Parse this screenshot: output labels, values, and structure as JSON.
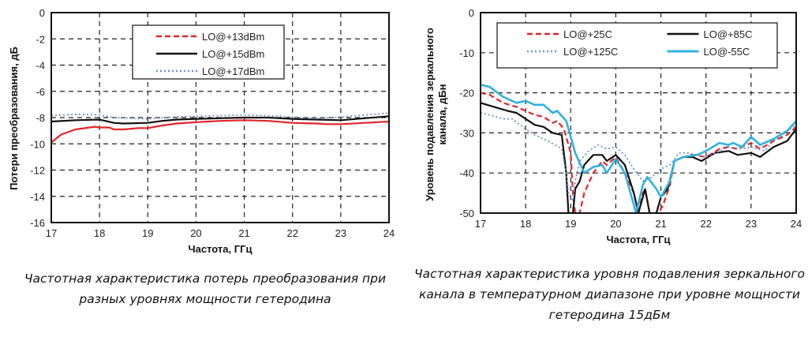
{
  "chart_data": [
    {
      "type": "line",
      "xlabel": "Частота, ГГц",
      "ylabel": "Потери преобразования, дБ",
      "xlim": [
        17,
        24
      ],
      "ylim": [
        -16,
        0
      ],
      "xticks": [
        17,
        18,
        19,
        20,
        21,
        22,
        23,
        24
      ],
      "yticks": [
        0,
        -2,
        -4,
        -6,
        -8,
        -10,
        -12,
        -14,
        -16
      ],
      "grid": true,
      "legend_placement": "top-center",
      "caption": "Частотная характеристика потерь преобразования при разных уровнях мощности гетеродина",
      "series": [
        {
          "name": "LO@+13dBm",
          "color": "#e0262b",
          "style": "dashed-legend",
          "x": [
            17,
            17.2,
            17.5,
            17.9,
            18,
            18.2,
            18.3,
            18.5,
            18.8,
            19,
            19.3,
            19.6,
            20,
            20.5,
            21,
            21.5,
            22,
            22.5,
            22.7,
            23,
            23.5,
            24
          ],
          "y": [
            -9.9,
            -9.3,
            -8.9,
            -8.7,
            -8.75,
            -8.75,
            -8.9,
            -8.9,
            -8.8,
            -8.8,
            -8.6,
            -8.45,
            -8.35,
            -8.25,
            -8.2,
            -8.25,
            -8.4,
            -8.45,
            -8.5,
            -8.5,
            -8.4,
            -8.3
          ]
        },
        {
          "name": "LO@+15dBm",
          "color": "#111111",
          "style": "solid",
          "x": [
            17,
            17.5,
            18,
            18.3,
            18.5,
            19,
            19.3,
            19.6,
            20,
            20.5,
            21,
            21.5,
            22,
            22.5,
            23,
            23.5,
            24
          ],
          "y": [
            -8.3,
            -8.2,
            -8.15,
            -8.4,
            -8.45,
            -8.4,
            -8.25,
            -8.15,
            -8.1,
            -8.05,
            -8.0,
            -8.0,
            -8.1,
            -8.15,
            -8.2,
            -8.05,
            -7.9
          ]
        },
        {
          "name": "LO@+17dBm",
          "color": "#6f8fc9",
          "style": "dotted",
          "x": [
            17,
            17.5,
            18,
            18.3,
            19,
            19.5,
            20,
            21,
            21.5,
            22,
            22.5,
            23,
            23.5,
            24
          ],
          "y": [
            -7.85,
            -7.75,
            -7.8,
            -8.0,
            -8.1,
            -7.95,
            -7.9,
            -7.8,
            -7.85,
            -7.95,
            -8.05,
            -7.95,
            -7.8,
            -7.65
          ]
        }
      ]
    },
    {
      "type": "line",
      "xlabel": "Частота, ГГц",
      "ylabel": "Уровень подавления зеркального канала, дБн",
      "xlim": [
        17,
        24
      ],
      "ylim": [
        -50,
        0
      ],
      "xticks": [
        17,
        18,
        19,
        20,
        21,
        22,
        23,
        24
      ],
      "yticks": [
        0,
        -10,
        -20,
        -30,
        -40,
        -50
      ],
      "grid": true,
      "legend_placement": "top",
      "caption": "Частотная характеристика уровня подавления зеркального канала в температурном диапазоне при уровне мощности гетеродина 15дБм",
      "series": [
        {
          "name": "LO@+25C",
          "color": "#e0262b",
          "style": "dashed",
          "x": [
            17,
            17.2,
            17.5,
            17.8,
            18,
            18.2,
            18.4,
            18.6,
            18.7,
            18.85,
            19,
            19.05,
            19.1,
            19.2,
            19.3,
            19.5,
            19.7,
            19.8,
            20,
            20.2,
            20.4,
            20.5,
            20.6,
            20.65,
            20.75,
            20.95,
            21.05,
            21.2,
            21.3,
            21.5,
            21.7,
            22,
            22.3,
            22.5,
            22.7,
            23,
            23.2,
            23.5,
            23.8,
            24
          ],
          "y": [
            -20,
            -20.5,
            -22.5,
            -23.5,
            -24.5,
            -25.5,
            -26,
            -27.5,
            -27,
            -29,
            -35,
            -45,
            -50,
            -50,
            -45,
            -40,
            -37,
            -38,
            -36,
            -40,
            -45,
            -50,
            -45,
            -44,
            -50,
            -50,
            -48,
            -43,
            -37,
            -36,
            -35.5,
            -36,
            -34,
            -33.5,
            -34,
            -32.5,
            -34,
            -32,
            -30.5,
            -28.5
          ]
        },
        {
          "name": "LO@+85C",
          "color": "#111111",
          "style": "solid",
          "x": [
            17,
            17.3,
            17.6,
            17.8,
            18,
            18.2,
            18.4,
            18.6,
            18.8,
            18.9,
            18.95,
            19.05,
            19.1,
            19.2,
            19.3,
            19.5,
            19.7,
            19.8,
            20,
            20.2,
            20.4,
            20.5,
            20.6,
            20.65,
            20.75,
            20.9,
            21,
            21.15,
            21.3,
            21.5,
            21.7,
            21.9,
            22.2,
            22.5,
            22.7,
            23,
            23.2,
            23.5,
            23.8,
            24
          ],
          "y": [
            -22.5,
            -23.5,
            -24.5,
            -25,
            -26.5,
            -28,
            -28.5,
            -30,
            -30.5,
            -40,
            -50,
            -50,
            -44,
            -42,
            -38,
            -35.5,
            -35.5,
            -37,
            -35.5,
            -38,
            -45,
            -50,
            -46,
            -44,
            -50,
            -50,
            -46,
            -44,
            -37,
            -36,
            -36,
            -37,
            -35,
            -34.5,
            -35.5,
            -35,
            -36,
            -33.5,
            -32,
            -29
          ]
        },
        {
          "name": "LO@+125C",
          "color": "#6f8fc9",
          "style": "dotted",
          "x": [
            17,
            17.2,
            17.5,
            17.7,
            18,
            18.2,
            18.5,
            18.8,
            18.9,
            18.95,
            19.05,
            19.1,
            19.2,
            19.4,
            19.6,
            19.8,
            20,
            20.2,
            20.4,
            20.6,
            20.8,
            21,
            21.2,
            21.4,
            21.6,
            22,
            22.3,
            22.5,
            22.8,
            23,
            23.3,
            23.5,
            24
          ],
          "y": [
            -25,
            -25.5,
            -26.5,
            -26.5,
            -29,
            -30.5,
            -32,
            -34,
            -40,
            -45,
            -47,
            -42,
            -37,
            -34.5,
            -33,
            -34,
            -33.5,
            -35.5,
            -39,
            -42,
            -41,
            -39,
            -38,
            -35,
            -35,
            -36,
            -34.5,
            -33.5,
            -34,
            -33.5,
            -34.5,
            -32,
            -28
          ]
        },
        {
          "name": "LO@-55C",
          "color": "#2fb2e0",
          "style": "solid-thick",
          "x": [
            17,
            17.2,
            17.5,
            17.8,
            18,
            18.2,
            18.4,
            18.6,
            18.7,
            18.9,
            19,
            19.1,
            19.3,
            19.5,
            19.7,
            19.8,
            20,
            20.2,
            20.4,
            20.45,
            20.6,
            20.7,
            20.9,
            21,
            21.2,
            21.3,
            21.5,
            21.8,
            22,
            22.3,
            22.5,
            22.6,
            22.8,
            23,
            23.2,
            23.5,
            23.8,
            24
          ],
          "y": [
            -18,
            -18.5,
            -21,
            -22.5,
            -22,
            -23,
            -23,
            -25,
            -24.5,
            -27,
            -31,
            -35,
            -40,
            -38.5,
            -38,
            -40,
            -36.5,
            -40,
            -48,
            -50,
            -43,
            -41,
            -44,
            -46,
            -42,
            -37,
            -36,
            -35.5,
            -34.5,
            -32.5,
            -33,
            -32.5,
            -33.5,
            -31,
            -33,
            -31.5,
            -29.5,
            -27
          ]
        }
      ]
    }
  ]
}
